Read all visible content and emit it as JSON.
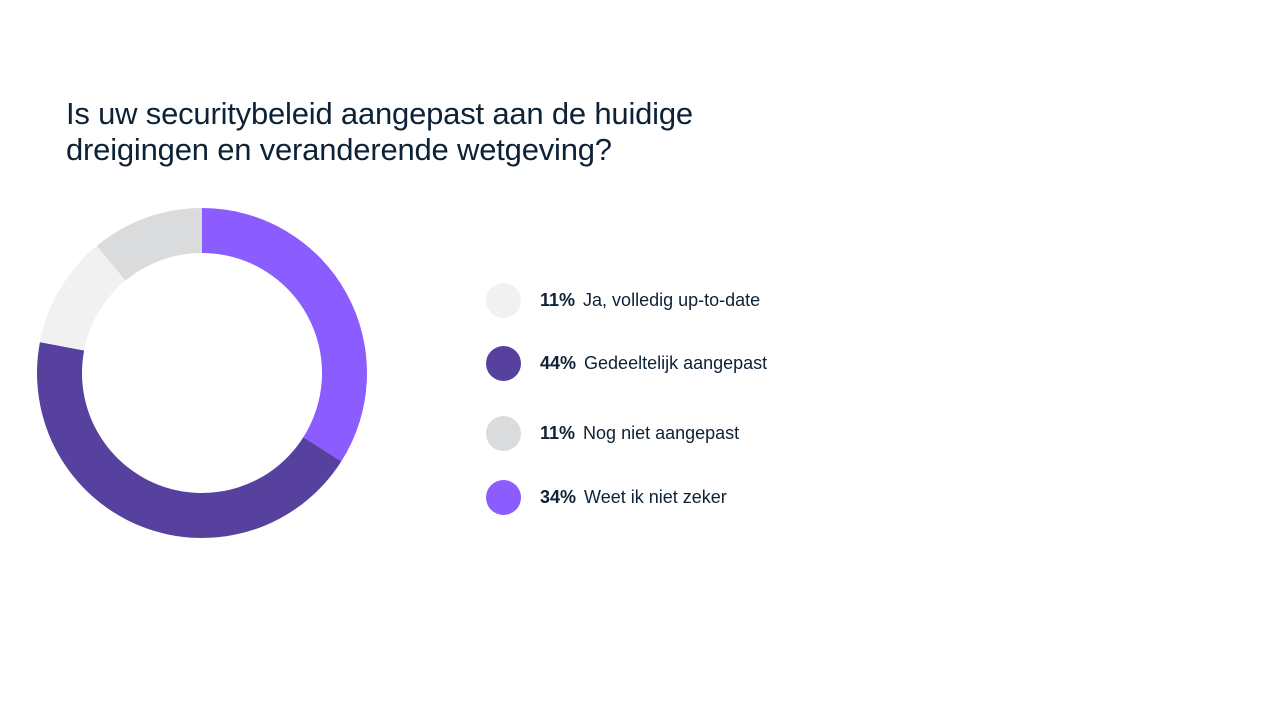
{
  "chart_data": {
    "type": "pie",
    "title": "Is uw securitybeleid aangepast aan de huidige dreigingen en veranderende wetgeving?",
    "donut": true,
    "series": [
      {
        "name": "Weet ik niet zeker",
        "value": 34,
        "label": "34%",
        "color": "#8b5cff"
      },
      {
        "name": "Gedeeltelijk aangepast",
        "value": 44,
        "label": "44%",
        "color": "#56419e"
      },
      {
        "name": "Ja, volledig up-to-date",
        "value": 11,
        "label": "11%",
        "color": "#f1f1f1"
      },
      {
        "name": "Nog niet aangepast",
        "value": 11,
        "label": "11%",
        "color": "#dadbdd"
      }
    ],
    "legend": [
      {
        "pct": "11%",
        "label": "Ja, volledig up-to-date",
        "color": "#f1f1f1"
      },
      {
        "pct": "44%",
        "label": "Gedeeltelijk aangepast",
        "color": "#56419e"
      },
      {
        "pct": "11%",
        "label": "Nog niet aangepast",
        "color": "#dadbdd"
      },
      {
        "pct": "34%",
        "label": "Weet ik niet zeker",
        "color": "#8b5cff"
      }
    ],
    "legend_placement": "right"
  }
}
